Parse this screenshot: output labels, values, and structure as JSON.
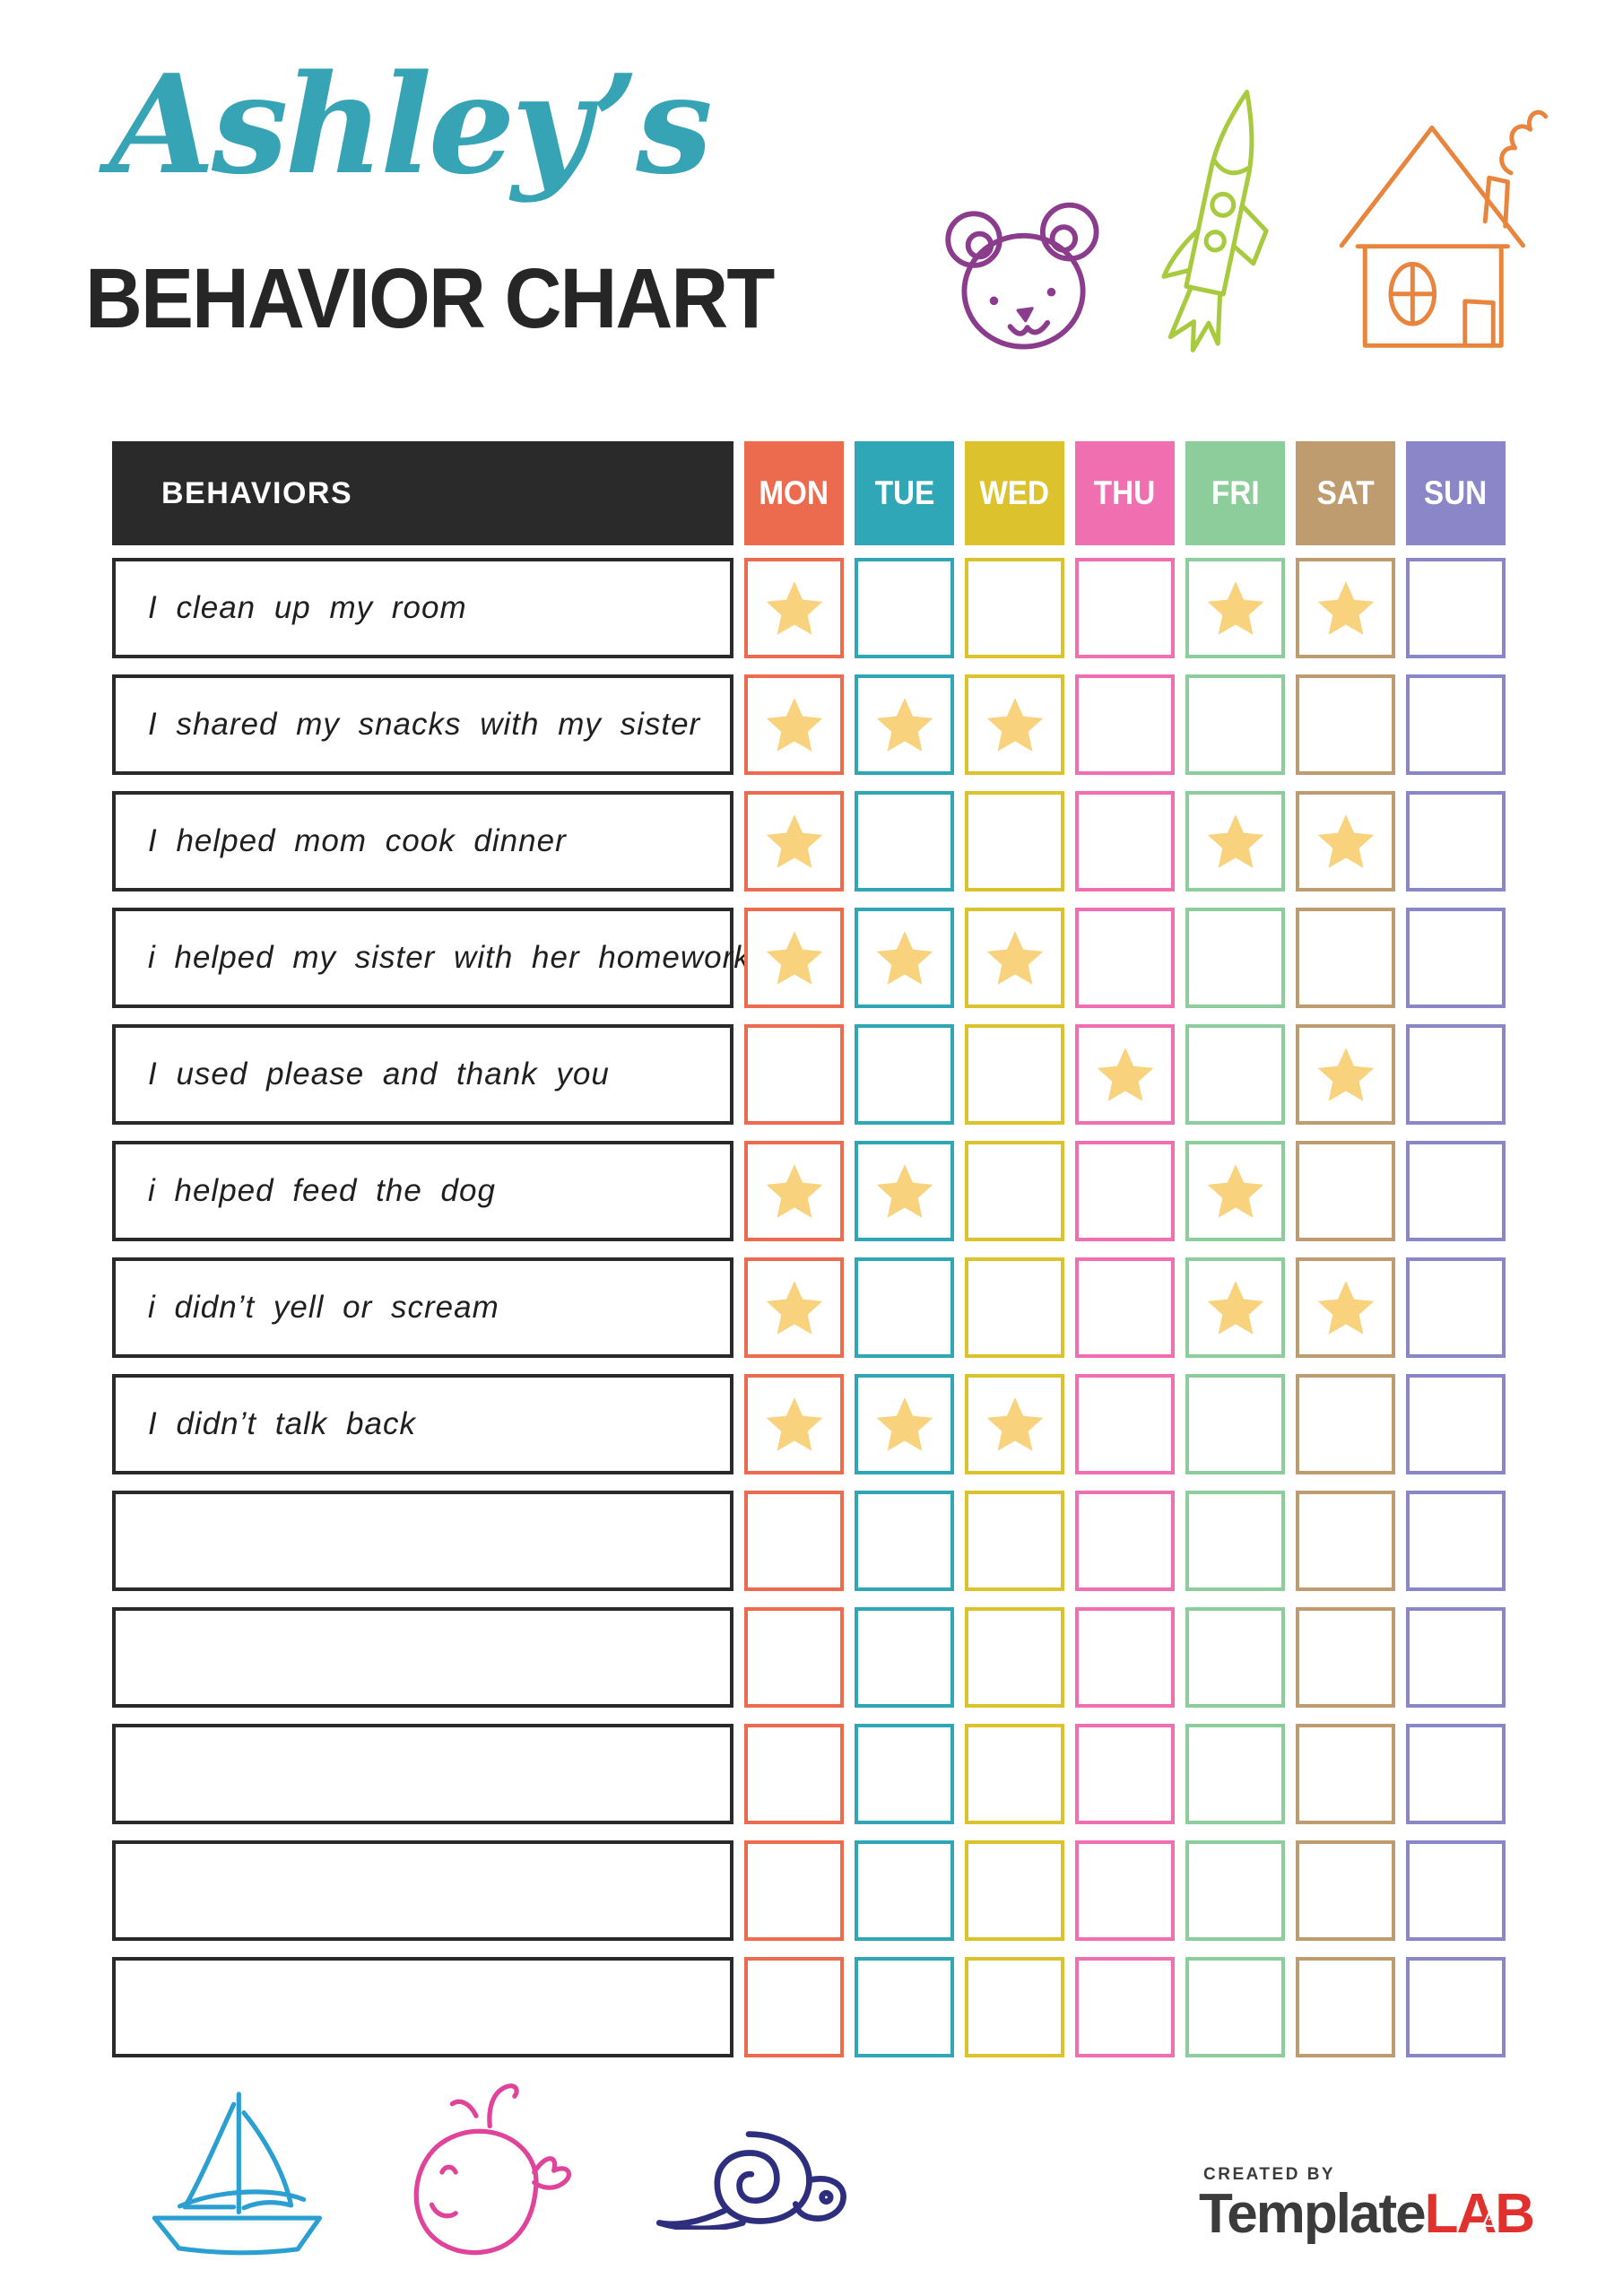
{
  "header": {
    "name": "Ashley’s",
    "title": "BEHAVIOR CHART"
  },
  "header_icons": [
    {
      "icon": "bear-icon",
      "color": "#8C3C8C"
    },
    {
      "icon": "rocket-icon",
      "color": "#A8CA3E"
    },
    {
      "icon": "house-icon",
      "color": "#E8843C"
    }
  ],
  "table": {
    "behaviors_header": "BEHAVIORS",
    "star_color": "#F8D27D",
    "days": [
      {
        "label": "MON",
        "color": "#EC6A4E"
      },
      {
        "label": "TUE",
        "color": "#2FA7B6"
      },
      {
        "label": "WED",
        "color": "#DCC32E"
      },
      {
        "label": "THU",
        "color": "#EF6FB1"
      },
      {
        "label": "FRI",
        "color": "#8CCD9B"
      },
      {
        "label": "SAT",
        "color": "#BF9C70"
      },
      {
        "label": "SUN",
        "color": "#8B86C7"
      }
    ],
    "rows": [
      {
        "label": "I clean up my room",
        "stars": [
          1,
          0,
          0,
          0,
          1,
          1,
          0
        ]
      },
      {
        "label": "I shared my snacks with my sister",
        "stars": [
          1,
          1,
          1,
          0,
          0,
          0,
          0
        ]
      },
      {
        "label": "I helped mom cook dinner",
        "stars": [
          1,
          0,
          0,
          0,
          1,
          1,
          0
        ]
      },
      {
        "label": "i helped my sister with her homework",
        "stars": [
          1,
          1,
          1,
          0,
          0,
          0,
          0
        ]
      },
      {
        "label": "I used please and thank you",
        "stars": [
          0,
          0,
          0,
          1,
          0,
          1,
          0
        ]
      },
      {
        "label": "i helped feed the dog",
        "stars": [
          1,
          1,
          0,
          0,
          1,
          0,
          0
        ]
      },
      {
        "label": "i didn’t yell or scream",
        "stars": [
          1,
          0,
          0,
          0,
          1,
          1,
          0
        ]
      },
      {
        "label": "I didn’t talk back",
        "stars": [
          1,
          1,
          1,
          0,
          0,
          0,
          0
        ]
      },
      {
        "label": "",
        "stars": [
          0,
          0,
          0,
          0,
          0,
          0,
          0
        ]
      },
      {
        "label": "",
        "stars": [
          0,
          0,
          0,
          0,
          0,
          0,
          0
        ]
      },
      {
        "label": "",
        "stars": [
          0,
          0,
          0,
          0,
          0,
          0,
          0
        ]
      },
      {
        "label": "",
        "stars": [
          0,
          0,
          0,
          0,
          0,
          0,
          0
        ]
      },
      {
        "label": "",
        "stars": [
          0,
          0,
          0,
          0,
          0,
          0,
          0
        ]
      }
    ]
  },
  "footer_icons": [
    {
      "icon": "sailboat-icon",
      "color": "#2B9FD1"
    },
    {
      "icon": "whale-icon",
      "color": "#E0439A"
    },
    {
      "icon": "snail-icon",
      "color": "#2E2E7E"
    }
  ],
  "branding": {
    "created_by": "CREATED BY",
    "brand_primary": "Template",
    "brand_secondary": "LAB",
    "brand_secondary_color": "#E0312E"
  }
}
